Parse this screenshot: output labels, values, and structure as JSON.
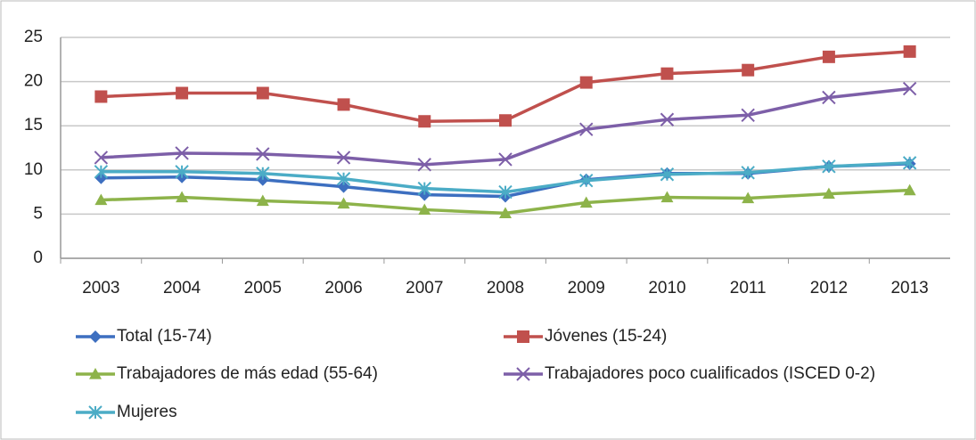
{
  "chart_data": {
    "type": "line",
    "categories": [
      "2003",
      "2004",
      "2005",
      "2006",
      "2007",
      "2008",
      "2009",
      "2010",
      "2011",
      "2012",
      "2013"
    ],
    "ylim": [
      0,
      25
    ],
    "yticks": [
      0,
      5,
      10,
      15,
      20,
      25
    ],
    "grid": true,
    "series": [
      {
        "name": "Total (15-74)",
        "color": "#3d6fc0",
        "marker": "diamond",
        "values": [
          9.1,
          9.2,
          8.9,
          8.1,
          7.2,
          7.0,
          8.9,
          9.6,
          9.6,
          10.4,
          10.7
        ]
      },
      {
        "name": "Jóvenes (15-24)",
        "color": "#c0504d",
        "marker": "square",
        "values": [
          18.3,
          18.7,
          18.7,
          17.4,
          15.5,
          15.6,
          19.9,
          20.9,
          21.3,
          22.8,
          23.4
        ]
      },
      {
        "name": "Trabajadores de más edad (55-64)",
        "color": "#8db34a",
        "marker": "triangle",
        "values": [
          6.6,
          6.9,
          6.5,
          6.2,
          5.5,
          5.1,
          6.3,
          6.9,
          6.8,
          7.3,
          7.7
        ]
      },
      {
        "name": "Trabajadores poco cualificados (ISCED 0-2)",
        "color": "#7d5fa8",
        "marker": "x",
        "values": [
          11.4,
          11.9,
          11.8,
          11.4,
          10.6,
          11.2,
          14.6,
          15.7,
          16.2,
          18.2,
          19.2
        ]
      },
      {
        "name": "Mujeres",
        "color": "#4bacc6",
        "marker": "star",
        "values": [
          9.8,
          9.8,
          9.6,
          9.0,
          7.9,
          7.5,
          8.8,
          9.5,
          9.7,
          10.4,
          10.8
        ]
      }
    ]
  }
}
